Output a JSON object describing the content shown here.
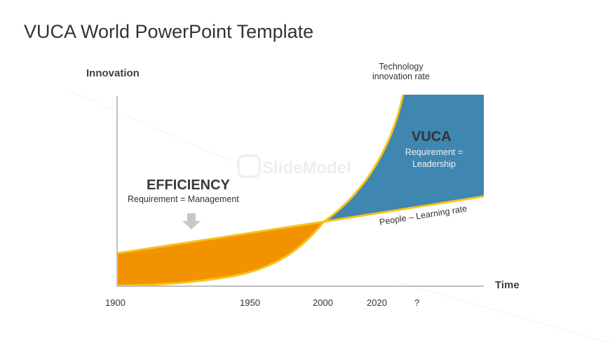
{
  "slide": {
    "title": "VUCA World PowerPoint Template"
  },
  "watermark": {
    "text": "SlideModel"
  },
  "axes": {
    "y_label": "Innovation",
    "x_label": "Time",
    "x_ticks": [
      "1900",
      "1950",
      "2000",
      "2020",
      "?"
    ]
  },
  "curves": {
    "technology_label_line1": "Technology",
    "technology_label_line2": "innovation rate",
    "people_label": "People – Learning rate"
  },
  "regions": {
    "efficiency_title": "EFFICIENCY",
    "efficiency_sub": "Requirement  = Management",
    "vuca_title": "VUCA",
    "vuca_sub_line1": "Requirement  =",
    "vuca_sub_line2": "Leadership"
  },
  "colors": {
    "efficiency_fill": "#F39200",
    "vuca_fill": "#3F86B0",
    "curve_stroke": "#F7C21A",
    "axis": "#BFBFBF",
    "arrow": "#C8C8C8"
  }
}
